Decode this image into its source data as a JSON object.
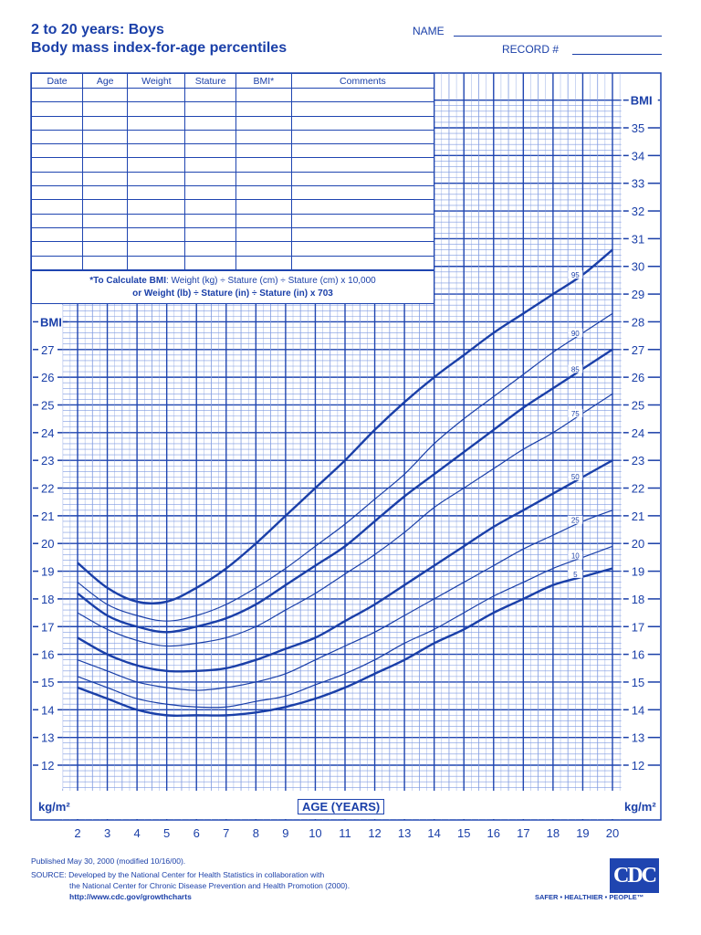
{
  "header": {
    "title_line1": "2 to 20 years: Boys",
    "title_line2": "Body mass index-for-age percentiles",
    "name_label": "NAME",
    "record_label": "RECORD #"
  },
  "record_table": {
    "columns": [
      "Date",
      "Age",
      "Weight",
      "Stature",
      "BMI*",
      "Comments"
    ],
    "row_count": 13
  },
  "formula": {
    "bold_part": "*To Calculate BMI",
    "line1_rest": ": Weight (kg) ÷ Stature (cm) ÷ Stature (cm) x 10,000",
    "line2": "or Weight (lb) ÷ Stature (in) ÷ Stature (in) x 703"
  },
  "axis": {
    "left_label": "BMI",
    "right_label": "BMI",
    "unit_left": "kg/m²",
    "unit_right": "kg/m²",
    "x_title": "AGE (YEARS)"
  },
  "footer": {
    "published": "Published May 30, 2000 (modified 10/16/00).",
    "source_line1": "SOURCE: Developed by the National Center for Health Statistics in collaboration with",
    "source_line2": "the National Center for Chronic Disease Prevention and Health Promotion (2000).",
    "url": "http://www.cdc.gov/growthcharts",
    "logo_text": "CDC",
    "tagline": "SAFER • HEALTHIER • PEOPLE™"
  },
  "colors": {
    "ink": "#1a3fa8",
    "grid_major": "#1f45b0",
    "grid_minor": "#7f9ae0"
  },
  "chart_data": {
    "type": "line",
    "xlabel": "AGE (YEARS)",
    "ylabel": "BMI",
    "xlim": [
      2,
      20
    ],
    "ylim_left": [
      12,
      27
    ],
    "ylim_right": [
      12,
      35
    ],
    "x_ticks": [
      2,
      3,
      4,
      5,
      6,
      7,
      8,
      9,
      10,
      11,
      12,
      13,
      14,
      15,
      16,
      17,
      18,
      19,
      20
    ],
    "y_ticks_left": [
      12,
      13,
      14,
      15,
      16,
      17,
      18,
      19,
      20,
      21,
      22,
      23,
      24,
      25,
      26,
      27
    ],
    "y_ticks_right": [
      12,
      13,
      14,
      15,
      16,
      17,
      18,
      19,
      20,
      21,
      22,
      23,
      24,
      25,
      26,
      27,
      28,
      29,
      30,
      31,
      32,
      33,
      34,
      35
    ],
    "grid": true,
    "x": [
      2,
      3,
      4,
      5,
      6,
      7,
      8,
      9,
      10,
      11,
      12,
      13,
      14,
      15,
      16,
      17,
      18,
      19,
      20
    ],
    "series": [
      {
        "name": "95",
        "values": [
          19.3,
          18.4,
          17.9,
          17.9,
          18.4,
          19.1,
          20.0,
          21.0,
          22.0,
          23.0,
          24.1,
          25.1,
          26.0,
          26.8,
          27.6,
          28.3,
          29.0,
          29.7,
          30.6
        ]
      },
      {
        "name": "90",
        "values": [
          18.6,
          17.8,
          17.4,
          17.2,
          17.4,
          17.8,
          18.4,
          19.1,
          19.9,
          20.7,
          21.6,
          22.5,
          23.6,
          24.5,
          25.3,
          26.1,
          26.9,
          27.6,
          28.3
        ]
      },
      {
        "name": "85",
        "values": [
          18.2,
          17.4,
          17.0,
          16.8,
          17.0,
          17.3,
          17.8,
          18.5,
          19.2,
          19.9,
          20.8,
          21.7,
          22.5,
          23.3,
          24.1,
          24.9,
          25.6,
          26.3,
          27.0
        ]
      },
      {
        "name": "75",
        "values": [
          17.5,
          16.9,
          16.5,
          16.3,
          16.4,
          16.6,
          17.0,
          17.6,
          18.2,
          18.9,
          19.6,
          20.4,
          21.3,
          22.0,
          22.7,
          23.4,
          24.0,
          24.7,
          25.4
        ]
      },
      {
        "name": "50",
        "values": [
          16.6,
          16.0,
          15.6,
          15.4,
          15.4,
          15.5,
          15.8,
          16.2,
          16.6,
          17.2,
          17.8,
          18.5,
          19.2,
          19.9,
          20.6,
          21.2,
          21.8,
          22.4,
          23.0
        ]
      },
      {
        "name": "25",
        "values": [
          15.8,
          15.4,
          15.0,
          14.8,
          14.7,
          14.8,
          15.0,
          15.3,
          15.8,
          16.3,
          16.8,
          17.4,
          18.0,
          18.6,
          19.2,
          19.8,
          20.3,
          20.8,
          21.2
        ]
      },
      {
        "name": "10",
        "values": [
          15.2,
          14.8,
          14.4,
          14.2,
          14.1,
          14.1,
          14.3,
          14.5,
          14.9,
          15.3,
          15.8,
          16.4,
          16.9,
          17.5,
          18.1,
          18.6,
          19.1,
          19.5,
          19.9
        ]
      },
      {
        "name": "5",
        "values": [
          14.8,
          14.4,
          14.0,
          13.8,
          13.8,
          13.8,
          13.9,
          14.1,
          14.4,
          14.8,
          15.3,
          15.8,
          16.4,
          16.9,
          17.5,
          18.0,
          18.5,
          18.8,
          19.1
        ]
      }
    ]
  }
}
